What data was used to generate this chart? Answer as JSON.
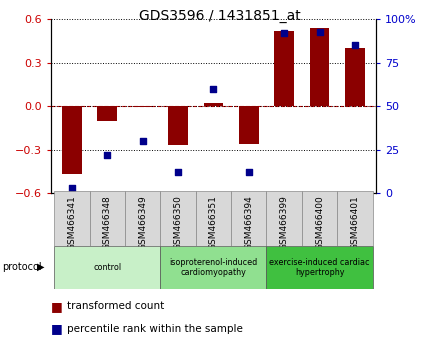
{
  "title": "GDS3596 / 1431851_at",
  "samples": [
    "GSM466341",
    "GSM466348",
    "GSM466349",
    "GSM466350",
    "GSM466351",
    "GSM466394",
    "GSM466399",
    "GSM466400",
    "GSM466401"
  ],
  "bar_values": [
    -0.47,
    -0.1,
    -0.005,
    -0.27,
    0.02,
    -0.26,
    0.52,
    0.54,
    0.4
  ],
  "dot_values": [
    3,
    22,
    30,
    12,
    60,
    12,
    92,
    93,
    85
  ],
  "ylim_left": [
    -0.6,
    0.6
  ],
  "ylim_right": [
    0,
    100
  ],
  "yticks_left": [
    -0.6,
    -0.3,
    0,
    0.3,
    0.6
  ],
  "yticks_right": [
    0,
    25,
    50,
    75,
    100
  ],
  "bar_color": "#8B0000",
  "dot_color": "#00008B",
  "groups": [
    {
      "label": "control",
      "start": 0,
      "end": 3,
      "color": "#c8f0c8"
    },
    {
      "label": "isoproterenol-induced\ncardiomyopathy",
      "start": 3,
      "end": 6,
      "color": "#90e090"
    },
    {
      "label": "exercise-induced cardiac\nhypertrophy",
      "start": 6,
      "end": 9,
      "color": "#40c040"
    }
  ],
  "protocol_label": "protocol",
  "legend_bar_label": "transformed count",
  "legend_dot_label": "percentile rank within the sample",
  "bg_color": "#f0f0f0"
}
